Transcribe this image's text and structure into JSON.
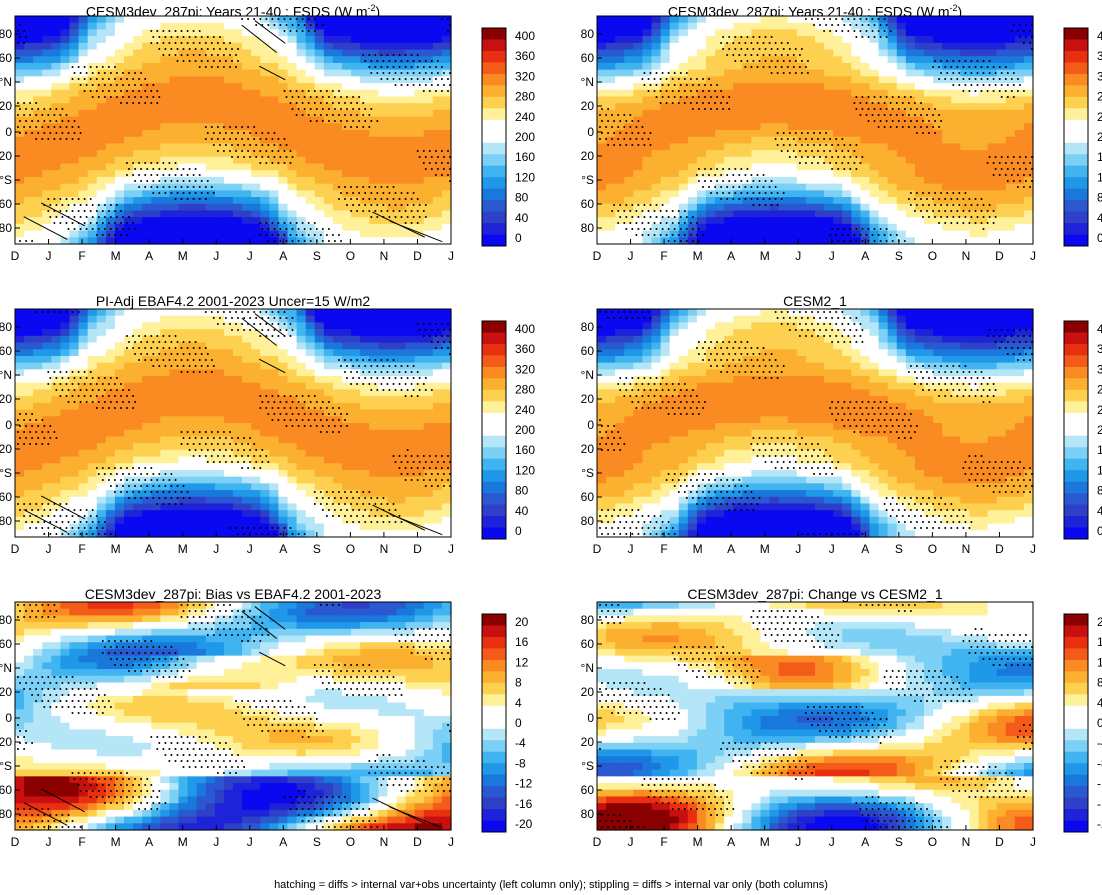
{
  "colorbars": {
    "fsds": {
      "labels": [
        "400",
        "360",
        "320",
        "280",
        "240",
        "200",
        "160",
        "120",
        "80",
        "40",
        "0"
      ],
      "colors": [
        "#8a0000",
        "#c81010",
        "#e83010",
        "#f45a18",
        "#fa8a22",
        "#fcb030",
        "#fdd050",
        "#fff09a",
        "#ffffff",
        "#ffffff",
        "#b4e6f8",
        "#7cd0f6",
        "#40b4f0",
        "#2098e8",
        "#1a78dc",
        "#2a58d0",
        "#2e40c8",
        "#1e22d8",
        "#0a08f0"
      ]
    },
    "diff": {
      "labels": [
        "20",
        "16",
        "12",
        "8",
        "4",
        "0",
        "-4",
        "-8",
        "-12",
        "-16",
        "-20"
      ],
      "colors": [
        "#8a0000",
        "#c81010",
        "#e83010",
        "#f45a18",
        "#fa8a22",
        "#fcb030",
        "#fdd050",
        "#fff09a",
        "#ffffff",
        "#ffffff",
        "#b4e6f8",
        "#7cd0f6",
        "#40b4f0",
        "#2098e8",
        "#1a78dc",
        "#2a58d0",
        "#2e40c8",
        "#1e22d8",
        "#0a08f0"
      ]
    }
  },
  "axes": {
    "months": [
      "D",
      "J",
      "F",
      "M",
      "A",
      "M",
      "J",
      "J",
      "A",
      "S",
      "O",
      "N",
      "D",
      "J"
    ],
    "yticks": [
      "80",
      "60",
      "°N",
      "20",
      "0",
      "20",
      "°S",
      "60",
      "80"
    ]
  },
  "chart_data": [
    {
      "type": "heatmap",
      "title": "CESM3dev_287pi: Years 21-40 : FSDS (W m",
      "title_sup": "-2",
      "title_end": ")",
      "colorbar": "fsds",
      "hatching": true,
      "stipple": true,
      "kind": "abs",
      "x": [
        "D",
        "J",
        "F",
        "M",
        "A",
        "M",
        "J",
        "J",
        "A",
        "S",
        "O",
        "N",
        "D",
        "J"
      ],
      "y": [
        "80",
        "60",
        "°N",
        "20",
        "0",
        "20",
        "°S",
        "60",
        "80"
      ]
    },
    {
      "type": "heatmap",
      "title": "CESM3dev_287pi: Years 21-40 : FSDS (W m",
      "title_sup": "-2",
      "title_end": ")",
      "colorbar": "fsds",
      "hatching": false,
      "stipple": true,
      "kind": "abs",
      "x": [
        "D",
        "J",
        "F",
        "M",
        "A",
        "M",
        "J",
        "J",
        "A",
        "S",
        "O",
        "N",
        "D",
        "J"
      ],
      "y": [
        "80",
        "60",
        "°N",
        "20",
        "0",
        "20",
        "°S",
        "60",
        "80"
      ]
    },
    {
      "type": "heatmap",
      "title": "PI-Adj EBAF4.2 2001-2023 Uncer=15 W/m2",
      "colorbar": "fsds",
      "hatching": true,
      "stipple": true,
      "kind": "abs",
      "x": [
        "D",
        "J",
        "F",
        "M",
        "A",
        "M",
        "J",
        "J",
        "A",
        "S",
        "O",
        "N",
        "D",
        "J"
      ],
      "y": [
        "80",
        "60",
        "°N",
        "20",
        "0",
        "20",
        "°S",
        "60",
        "80"
      ]
    },
    {
      "type": "heatmap",
      "title": "CESM2_1",
      "colorbar": "fsds",
      "hatching": false,
      "stipple": true,
      "kind": "abs",
      "x": [
        "D",
        "J",
        "F",
        "M",
        "A",
        "M",
        "J",
        "J",
        "A",
        "S",
        "O",
        "N",
        "D",
        "J"
      ],
      "y": [
        "80",
        "60",
        "°N",
        "20",
        "0",
        "20",
        "°S",
        "60",
        "80"
      ]
    },
    {
      "type": "heatmap",
      "title": "CESM3dev_287pi: Bias vs EBAF4.2 2001-2023",
      "colorbar": "diff",
      "hatching": true,
      "stipple": true,
      "kind": "bias",
      "x": [
        "D",
        "J",
        "F",
        "M",
        "A",
        "M",
        "J",
        "J",
        "A",
        "S",
        "O",
        "N",
        "D",
        "J"
      ],
      "y": [
        "80",
        "60",
        "°N",
        "20",
        "0",
        "20",
        "°S",
        "60",
        "80"
      ]
    },
    {
      "type": "heatmap",
      "title": "CESM3dev_287pi: Change vs CESM2_1",
      "colorbar": "diff",
      "hatching": false,
      "stipple": true,
      "kind": "change",
      "x": [
        "D",
        "J",
        "F",
        "M",
        "A",
        "M",
        "J",
        "J",
        "A",
        "S",
        "O",
        "N",
        "D",
        "J"
      ],
      "y": [
        "80",
        "60",
        "°N",
        "20",
        "0",
        "20",
        "°S",
        "60",
        "80"
      ]
    }
  ],
  "footer": "hatching = diffs > internal var+obs uncertainty (left column only); stippling = diffs > internal var only (both columns)"
}
